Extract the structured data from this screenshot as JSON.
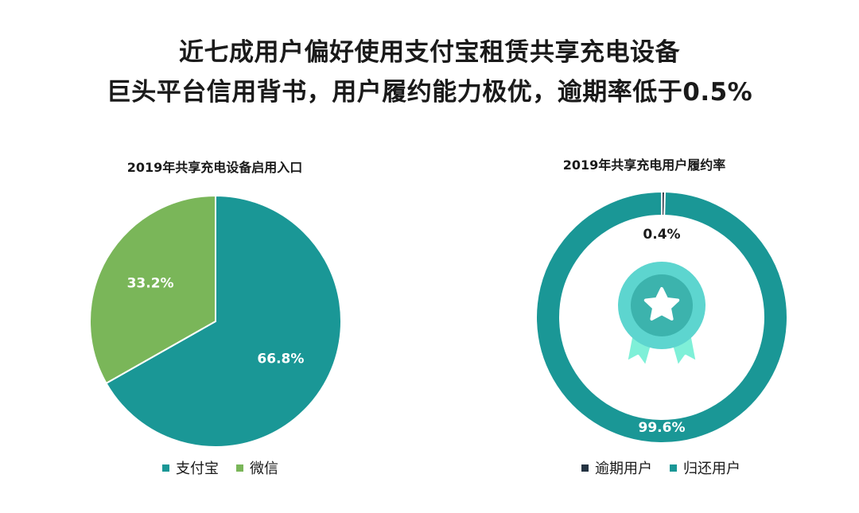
{
  "headline": {
    "line1": "近七成用户偏好使用支付宝租赁共享充电设备",
    "line2": "巨头平台信用背书，用户履约能力极优，逾期率低于0.5%"
  },
  "colors": {
    "teal": "#1a9796",
    "green": "#7ab659",
    "dark": "#243342",
    "badge": "#5dd5cf",
    "ribbon": "#7ff0d8"
  },
  "icons": {
    "center": "award-medal-star-icon"
  },
  "chart_data": [
    {
      "type": "pie",
      "title": "2019年共享充电设备启用入口",
      "categories": [
        "支付宝",
        "微信"
      ],
      "values": [
        66.8,
        33.2
      ],
      "labels": [
        "66.8%",
        "33.2%"
      ],
      "unit": "%",
      "colors": [
        "#1a9796",
        "#7ab659"
      ],
      "legend": "bottom"
    },
    {
      "type": "pie",
      "subtype": "donut",
      "title": "2019年共享充电用户履约率",
      "categories": [
        "逾期用户",
        "归还用户"
      ],
      "values": [
        0.4,
        99.6
      ],
      "labels": [
        "0.4%",
        "99.6%"
      ],
      "unit": "%",
      "colors": [
        "#243342",
        "#1a9796"
      ],
      "legend": "bottom"
    }
  ]
}
